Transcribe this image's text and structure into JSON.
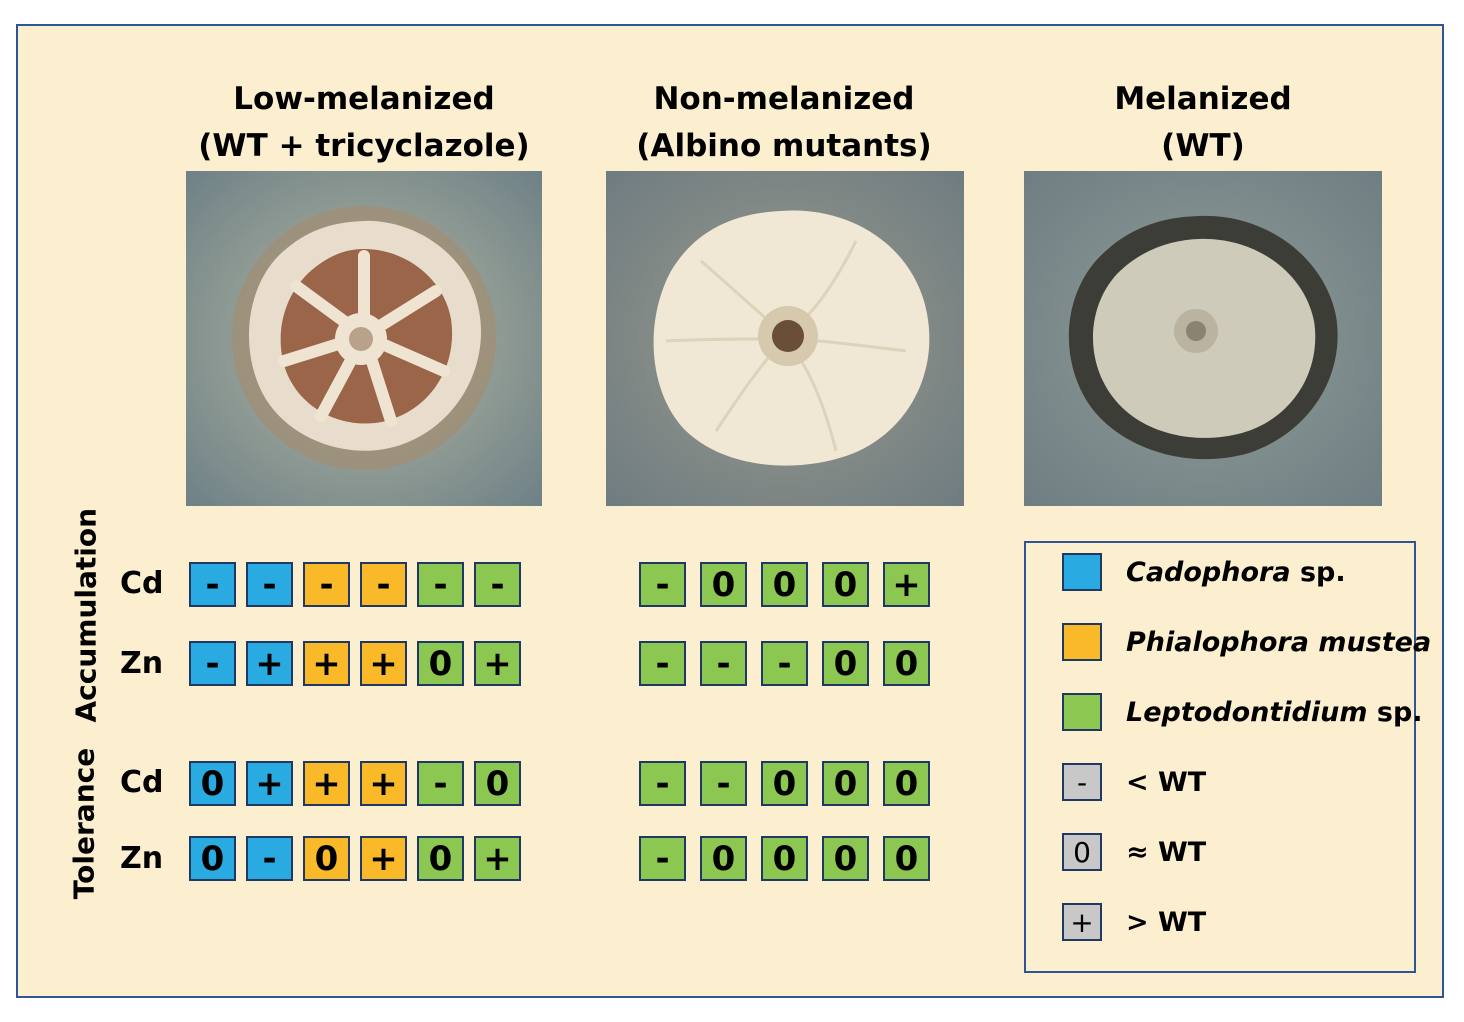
{
  "columns": [
    {
      "title_line1": "Low-melanized",
      "title_line2": "(WT + tricyclazole)"
    },
    {
      "title_line1": "Non-melanized",
      "title_line2": "(Albino mutants)"
    },
    {
      "title_line1": "Melanized",
      "title_line2": "(WT)"
    }
  ],
  "groups": {
    "accumulation": "Accumulation",
    "tolerance": "Tolerance"
  },
  "row_labels": {
    "cd": "Cd",
    "zn": "Zn"
  },
  "colors": {
    "cadophora": "#29abe2",
    "phialophora": "#f9b928",
    "leptodontidium": "#8cc751",
    "neutral": "#c8c8c8",
    "border": "#1f3864",
    "background": "#fcefd0"
  },
  "tables": {
    "low": {
      "species": [
        "cadophora",
        "cadophora",
        "phialophora",
        "phialophora",
        "leptodontidium",
        "leptodontidium"
      ],
      "accumulation_cd": [
        "-",
        "-",
        "-",
        "-",
        "-",
        "-"
      ],
      "accumulation_zn": [
        "-",
        "+",
        "+",
        "+",
        "0",
        "+"
      ],
      "tolerance_cd": [
        "0",
        "+",
        "+",
        "+",
        "-",
        "0"
      ],
      "tolerance_zn": [
        "0",
        "-",
        "0",
        "+",
        "0",
        "+"
      ]
    },
    "non": {
      "species": [
        "leptodontidium",
        "leptodontidium",
        "leptodontidium",
        "leptodontidium",
        "leptodontidium"
      ],
      "accumulation_cd": [
        "-",
        "0",
        "0",
        "0",
        "+"
      ],
      "accumulation_zn": [
        "-",
        "-",
        "-",
        "0",
        "0"
      ],
      "tolerance_cd": [
        "-",
        "-",
        "0",
        "0",
        "0"
      ],
      "tolerance_zn": [
        "-",
        "0",
        "0",
        "0",
        "0"
      ]
    }
  },
  "legend": {
    "species": [
      {
        "key": "cadophora",
        "italic": "Cadophora",
        "suffix": " sp."
      },
      {
        "key": "phialophora",
        "italic": "Phialophora mustea",
        "suffix": ""
      },
      {
        "key": "leptodontidium",
        "italic": "Leptodontidium",
        "suffix": " sp."
      }
    ],
    "symbols": [
      {
        "symbol": "-",
        "label": "< WT"
      },
      {
        "symbol": "0",
        "label": "≈ WT"
      },
      {
        "symbol": "+",
        "label": "> WT"
      }
    ]
  }
}
